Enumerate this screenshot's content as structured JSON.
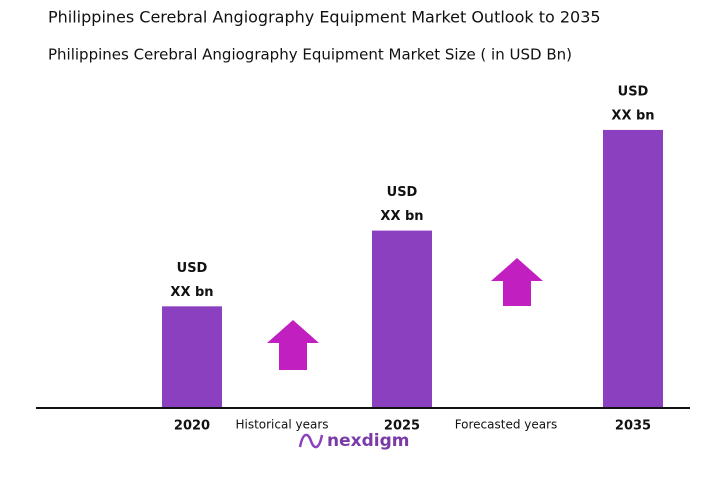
{
  "chart_data": {
    "type": "bar",
    "title": "Philippines Cerebral Angiography Equipment Market Outlook to 2035",
    "subtitle": "Philippines Cerebral Angiography Equipment  Market Size  ( in USD Bn)",
    "categories": [
      "2020",
      "2025",
      "2035"
    ],
    "values": [
      101,
      177,
      278
    ],
    "bar_labels": [
      [
        "USD",
        "XX bn"
      ],
      [
        "USD",
        "XX bn"
      ],
      [
        "USD",
        "XX bn"
      ]
    ],
    "period_labels": [
      "Historical years",
      "Forecasted years"
    ],
    "color": "#8b41bf",
    "ylim": [
      0,
      300
    ],
    "logo": "nexdigm"
  }
}
